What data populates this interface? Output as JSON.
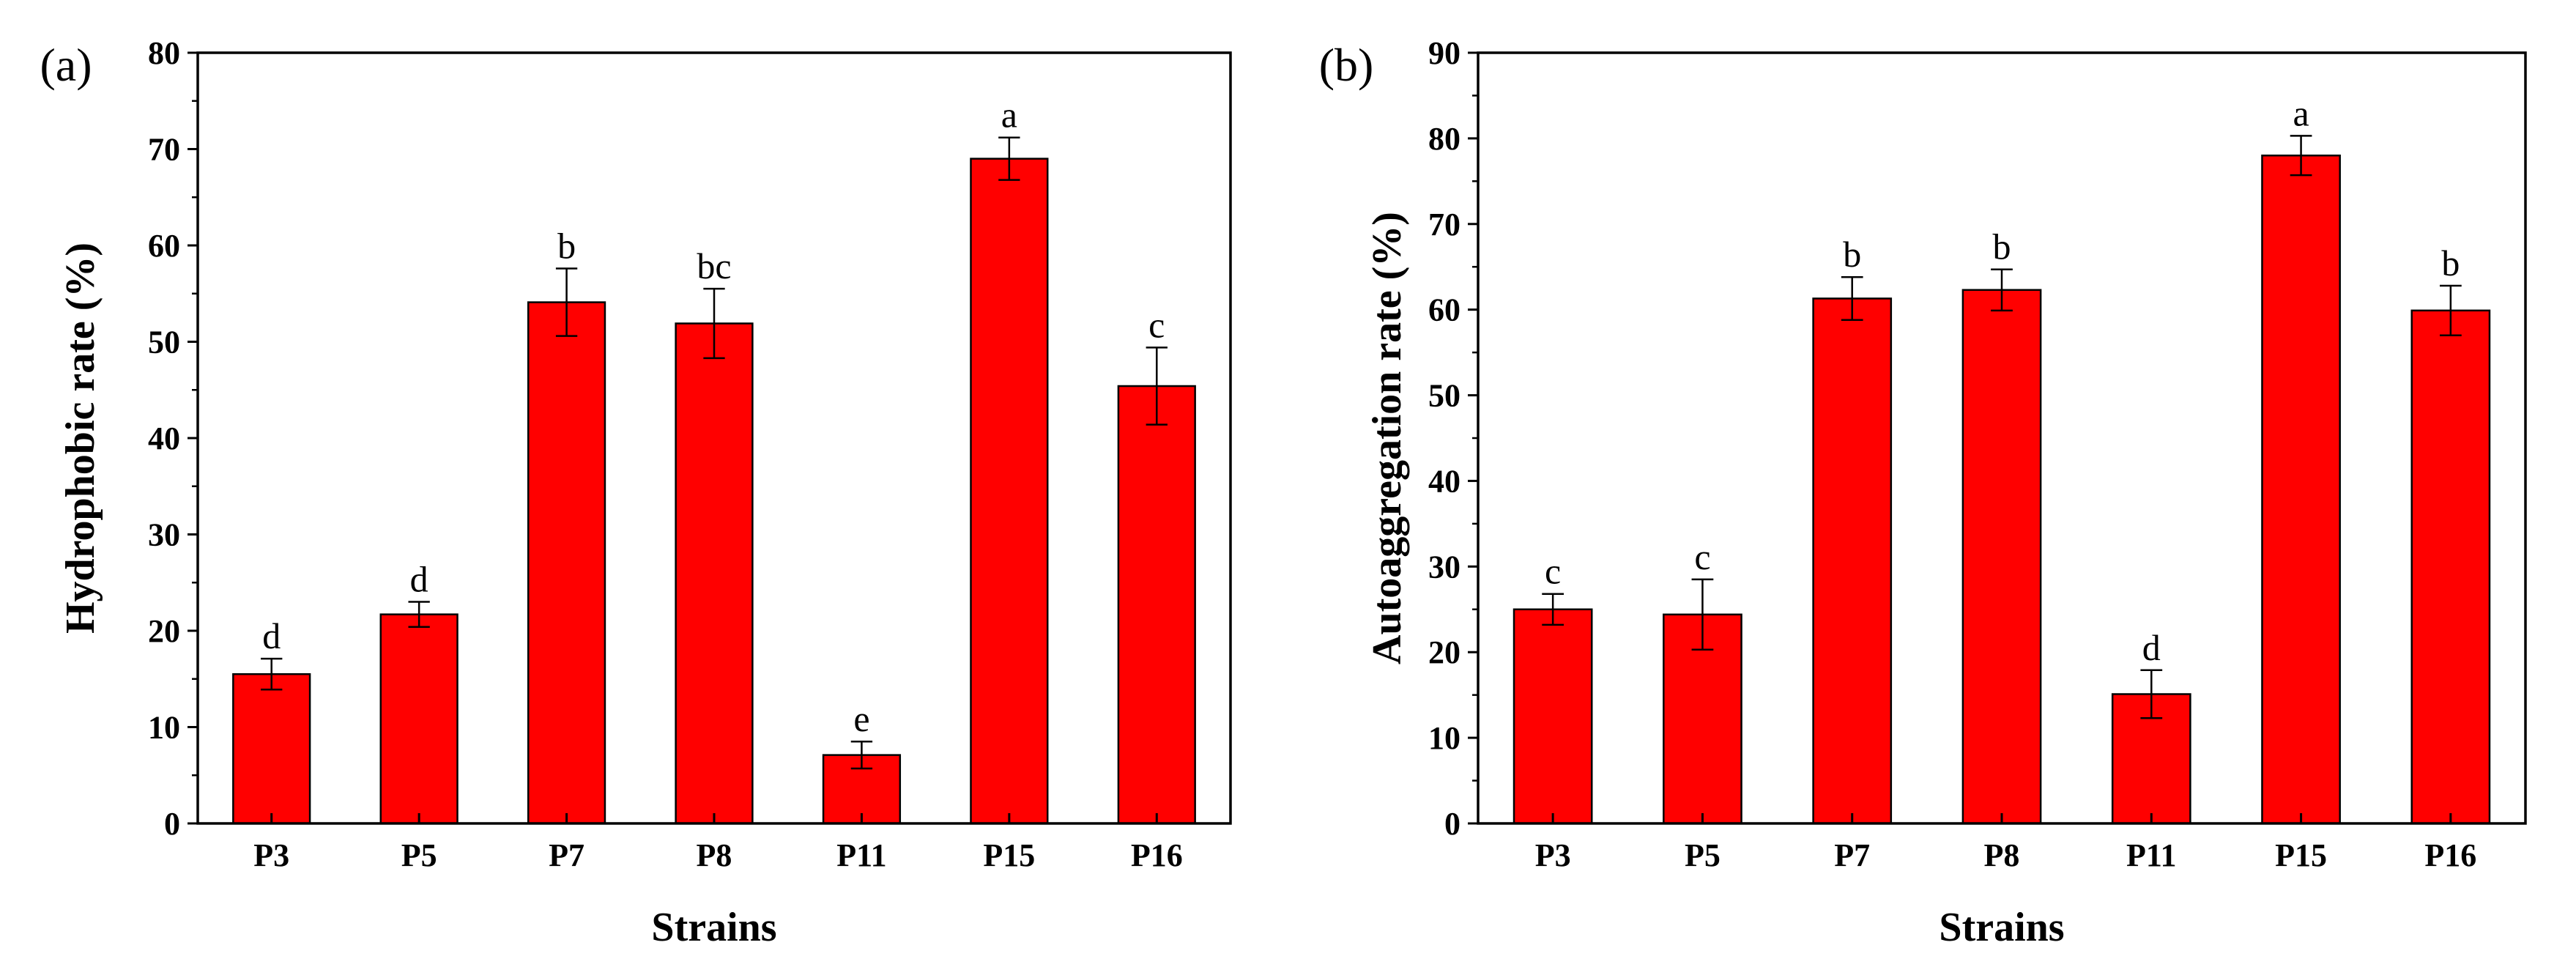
{
  "chart_data": [
    {
      "type": "bar",
      "panel_label": "(a)",
      "categories": [
        "P3",
        "P5",
        "P7",
        "P8",
        "P11",
        "P15",
        "P16"
      ],
      "values": [
        15.5,
        21.7,
        54.1,
        51.9,
        7.1,
        69.0,
        45.4
      ],
      "errors": [
        1.6,
        1.3,
        3.5,
        3.6,
        1.4,
        2.2,
        4.0
      ],
      "significance": [
        "d",
        "d",
        "b",
        "bc",
        "e",
        "a",
        "c"
      ],
      "xlabel": "Strains",
      "ylabel": "Hydrophobic rate (%)",
      "ylim": [
        0,
        80
      ],
      "yticks": [
        0,
        10,
        20,
        30,
        40,
        50,
        60,
        70,
        80
      ],
      "bar_color": "#ff0000",
      "grid": false
    },
    {
      "type": "bar",
      "panel_label": "(b)",
      "categories": [
        "P3",
        "P5",
        "P7",
        "P8",
        "P11",
        "P15",
        "P16"
      ],
      "values": [
        25.0,
        24.4,
        61.3,
        62.3,
        15.1,
        78.0,
        59.9
      ],
      "errors": [
        1.8,
        4.1,
        2.5,
        2.4,
        2.8,
        2.3,
        2.9
      ],
      "significance": [
        "c",
        "c",
        "b",
        "b",
        "d",
        "a",
        "b"
      ],
      "xlabel": "Strains",
      "ylabel": "Autoaggregation rate (%)",
      "ylim": [
        0,
        90
      ],
      "yticks": [
        0,
        10,
        20,
        30,
        40,
        50,
        60,
        70,
        80,
        90
      ],
      "bar_color": "#ff0000",
      "grid": false
    }
  ]
}
